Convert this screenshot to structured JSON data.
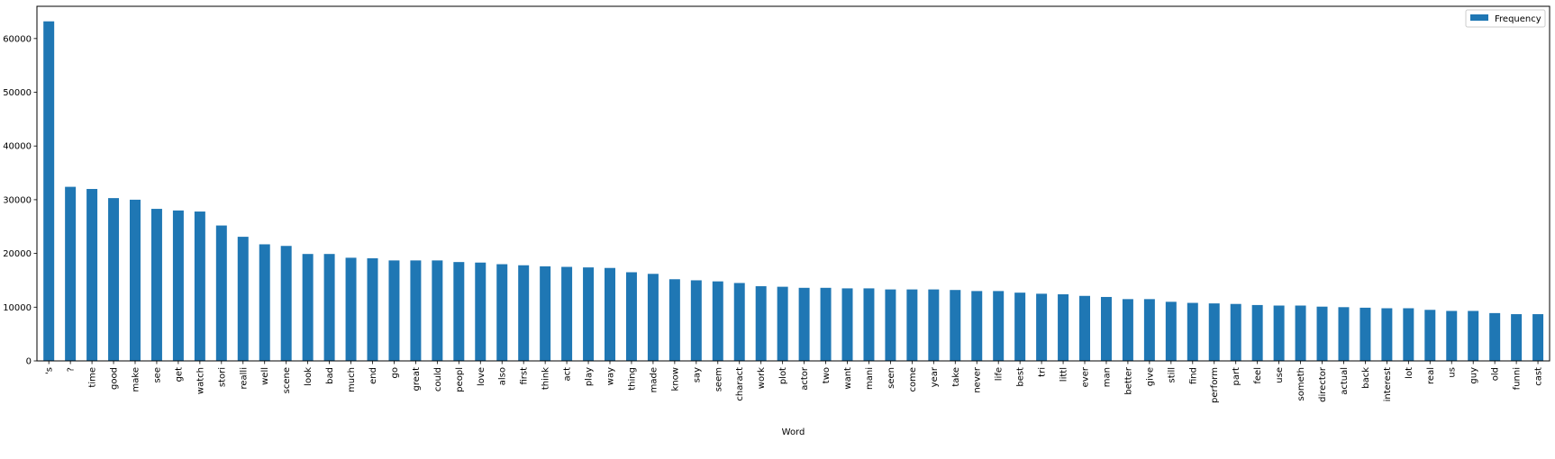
{
  "chart_data": {
    "type": "bar",
    "title": "",
    "xlabel": "Word",
    "ylabel": "",
    "ylim": [
      0,
      66000
    ],
    "yticks": [
      0,
      10000,
      20000,
      30000,
      40000,
      50000,
      60000
    ],
    "grid": false,
    "legend": {
      "position": "top-right",
      "entries": [
        "Frequency"
      ]
    },
    "colors": {
      "bar": "#1f77b4"
    },
    "categories": [
      "'s",
      "?",
      "time",
      "good",
      "make",
      "see",
      "get",
      "watch",
      "stori",
      "realli",
      "well",
      "scene",
      "look",
      "bad",
      "much",
      "end",
      "go",
      "great",
      "could",
      "peopl",
      "love",
      "also",
      "first",
      "think",
      "act",
      "play",
      "way",
      "thing",
      "made",
      "know",
      "say",
      "seem",
      "charact",
      "work",
      "plot",
      "actor",
      "two",
      "want",
      "mani",
      "seen",
      "come",
      "year",
      "take",
      "never",
      "life",
      "best",
      "tri",
      "littl",
      "ever",
      "man",
      "better",
      "give",
      "still",
      "find",
      "perform",
      "part",
      "feel",
      "use",
      "someth",
      "director",
      "actual",
      "back",
      "interest",
      "lot",
      "real",
      "us",
      "guy",
      "old",
      "funni",
      "cast"
    ],
    "series": [
      {
        "name": "Frequency",
        "values": [
          63200,
          32400,
          32000,
          30300,
          30000,
          28300,
          28000,
          27800,
          25200,
          23100,
          21700,
          21400,
          19900,
          19900,
          19200,
          19100,
          18700,
          18700,
          18700,
          18400,
          18300,
          18000,
          17800,
          17600,
          17500,
          17400,
          17300,
          16500,
          16200,
          15200,
          15000,
          14800,
          14500,
          13900,
          13800,
          13600,
          13600,
          13500,
          13500,
          13300,
          13300,
          13300,
          13200,
          13000,
          13000,
          12700,
          12500,
          12400,
          12100,
          11900,
          11500,
          11500,
          11000,
          10800,
          10700,
          10600,
          10400,
          10300,
          10300,
          10100,
          10000,
          9900,
          9800,
          9800,
          9500,
          9300,
          9300,
          8900,
          8700,
          8700
        ]
      }
    ]
  }
}
